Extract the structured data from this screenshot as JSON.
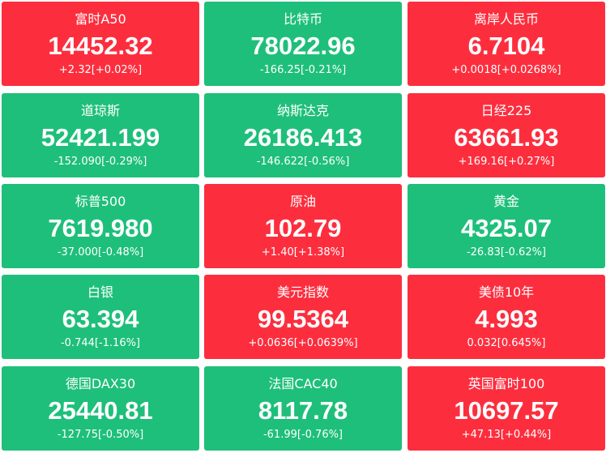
{
  "tiles": [
    {
      "name": "富时A50",
      "price": "14452.32",
      "change": "+2.32[+0.02%]",
      "color": "#fc2e3e"
    },
    {
      "name": "比特币",
      "price": "78022.96",
      "change": "-166.25[-0.21%]",
      "color": "#1ebf7a"
    },
    {
      "name": "离岸人民币",
      "price": "6.7104",
      "change": "+0.0018[+0.0268%]",
      "color": "#fc2e3e"
    },
    {
      "name": "道琼斯",
      "price": "52421.199",
      "change": "-152.090[-0.29%]",
      "color": "#1ebf7a"
    },
    {
      "name": "纳斯达克",
      "price": "26186.413",
      "change": "-146.622[-0.56%]",
      "color": "#1ebf7a"
    },
    {
      "name": "日经225",
      "price": "63661.93",
      "change": "+169.16[+0.27%]",
      "color": "#fc2e3e"
    },
    {
      "name": "标普500",
      "price": "7619.980",
      "change": "-37.000[-0.48%]",
      "color": "#1ebf7a"
    },
    {
      "name": "原油",
      "price": "102.79",
      "change": "+1.40[+1.38%]",
      "color": "#fc2e3e"
    },
    {
      "name": "黄金",
      "price": "4325.07",
      "change": "-26.83[-0.62%]",
      "color": "#1ebf7a"
    },
    {
      "name": "白银",
      "price": "63.394",
      "change": "-0.744[-1.16%]",
      "color": "#1ebf7a"
    },
    {
      "name": "美元指数",
      "price": "99.5364",
      "change": "+0.0636[+0.0639%]",
      "color": "#fc2e3e"
    },
    {
      "name": "美债10年",
      "price": "4.993",
      "change": "0.032[0.645%]",
      "color": "#fc2e3e"
    },
    {
      "name": "德国DAX30",
      "price": "25440.81",
      "change": "-127.75[-0.50%]",
      "color": "#1ebf7a"
    },
    {
      "name": "法国CAC40",
      "price": "8117.78",
      "change": "-61.99[-0.76%]",
      "color": "#1ebf7a"
    },
    {
      "name": "英国富时100",
      "price": "10697.57",
      "change": "+47.13[+0.44%]",
      "color": "#fc2e3e"
    }
  ]
}
